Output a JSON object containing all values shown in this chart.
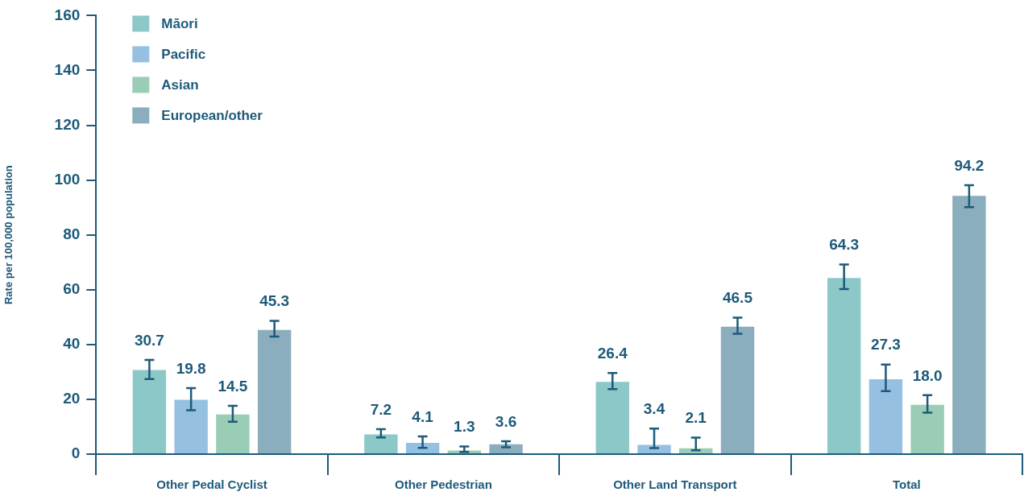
{
  "chart_data": {
    "type": "bar",
    "ylabel": "Rate per 100,000 population",
    "categories": [
      "Other Pedal Cyclist",
      "Other Pedestrian",
      "Other Land Transport",
      "Total"
    ],
    "series": [
      {
        "name": "Māori",
        "color": "#8cc8c8",
        "values": [
          30.7,
          7.2,
          26.4,
          64.3
        ],
        "value_labels": [
          "30.7",
          "7.2",
          "26.4",
          "64.3"
        ],
        "errors": [
          [
            27.4,
            34.4
          ],
          [
            6.1,
            9.1
          ],
          [
            23.7,
            29.6
          ],
          [
            60.2,
            69.2
          ]
        ]
      },
      {
        "name": "Pacific",
        "color": "#95c0e2",
        "values": [
          19.8,
          4.1,
          3.4,
          27.3
        ],
        "value_labels": [
          "19.8",
          "4.1",
          "3.4",
          "27.3"
        ],
        "errors": [
          [
            16.0,
            24.1
          ],
          [
            2.3,
            6.5
          ],
          [
            2.2,
            9.3
          ],
          [
            23.0,
            32.7
          ]
        ]
      },
      {
        "name": "Asian",
        "color": "#9acdb5",
        "values": [
          14.5,
          1.3,
          2.1,
          18.0
        ],
        "value_labels": [
          "14.5",
          "1.3",
          "2.1",
          "18.0"
        ],
        "errors": [
          [
            11.8,
            17.6
          ],
          [
            0.8,
            2.8
          ],
          [
            1.4,
            6.0
          ],
          [
            15.1,
            21.5
          ]
        ]
      },
      {
        "name": "European/other",
        "color": "#8aaebd",
        "values": [
          45.3,
          3.6,
          46.5,
          94.2
        ],
        "value_labels": [
          "45.3",
          "3.6",
          "46.5",
          "94.2"
        ],
        "errors": [
          [
            42.9,
            48.6
          ],
          [
            2.5,
            4.7
          ],
          [
            43.9,
            49.8
          ],
          [
            90.1,
            98.1
          ]
        ]
      }
    ],
    "ylim": [
      0,
      160
    ],
    "yticks": [
      0,
      20,
      40,
      60,
      80,
      100,
      120,
      140,
      160
    ],
    "grid": false,
    "legend": "top left"
  }
}
